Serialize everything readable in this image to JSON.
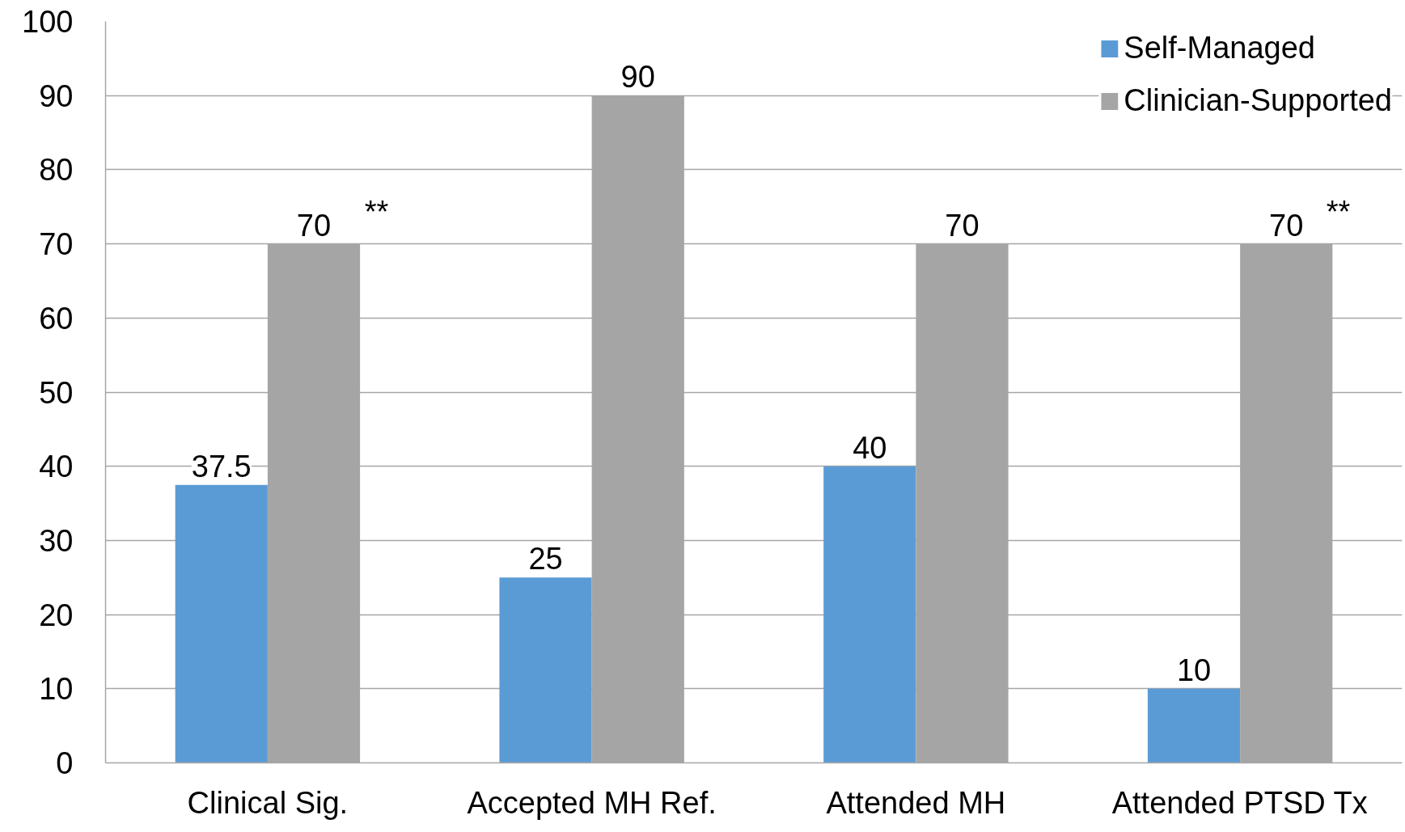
{
  "chart_data": {
    "type": "bar",
    "categories": [
      "Clinical Sig.",
      "Accepted MH Ref.",
      "Attended MH",
      "Attended PTSD Tx"
    ],
    "series": [
      {
        "name": "Self-Managed",
        "color": "#5b9bd5",
        "values": [
          37.5,
          25,
          40,
          10
        ]
      },
      {
        "name": "Clinician-Supported",
        "color": "#a5a5a5",
        "values": [
          70,
          90,
          70,
          70
        ]
      }
    ],
    "ylim": [
      0,
      100
    ],
    "yticks": [
      0,
      10,
      20,
      30,
      40,
      50,
      60,
      70,
      80,
      90,
      100
    ],
    "grid": "y",
    "legend": "top right",
    "data_labels": true,
    "annotations": [
      "**",
      "**"
    ]
  }
}
